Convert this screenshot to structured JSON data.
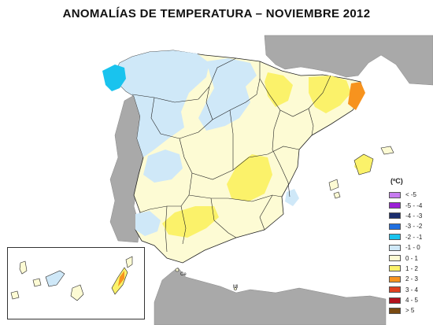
{
  "title": "ANOMALÍAS DE TEMPERATURA – NOVIEMBRE 2012",
  "legend": {
    "title": "(ºC)",
    "items": [
      {
        "label": "< -5",
        "color": "#c77bf0"
      },
      {
        "label": "-5 - -4",
        "color": "#9b1fd6"
      },
      {
        "label": "-4 - -3",
        "color": "#1c2e6e"
      },
      {
        "label": "-3 - -2",
        "color": "#1f6fe0"
      },
      {
        "label": "-2 - -1",
        "color": "#19c3ee"
      },
      {
        "label": "-1 - 0",
        "color": "#cfe8f8"
      },
      {
        "label": "0 - 1",
        "color": "#fdfbd4"
      },
      {
        "label": "1 - 2",
        "color": "#fbf26a"
      },
      {
        "label": "2 - 3",
        "color": "#f7931e"
      },
      {
        "label": "3 - 4",
        "color": "#e0401f"
      },
      {
        "label": "4 - 5",
        "color": "#b3121d"
      },
      {
        "label": "> 5",
        "color": "#7a4a12"
      }
    ]
  },
  "cities": {
    "ceuta": "Ce",
    "melilla": "Ml"
  },
  "colors": {
    "neighbor": "#a9a9a9",
    "sea": "#ffffff",
    "border": "#222222"
  }
}
